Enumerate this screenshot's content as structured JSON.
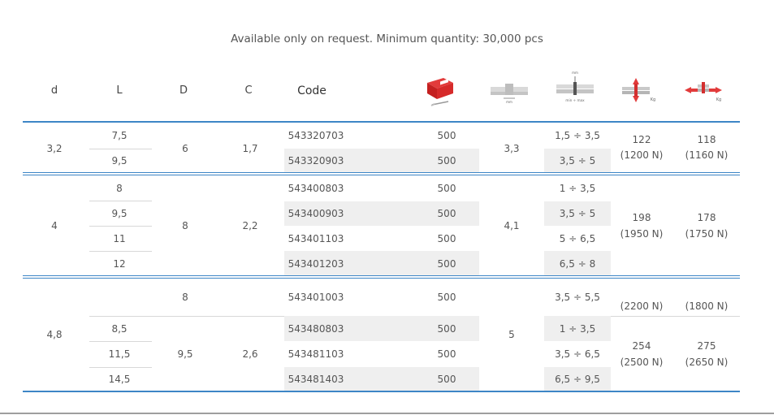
{
  "note": "Available only on request. Minimum quantity: 30,000 pcs",
  "headers": {
    "d": "d",
    "L": "L",
    "D": "D",
    "C": "C",
    "code": "Code"
  },
  "icons": {
    "box": "package-box-icon",
    "diameter": "rivet-diameter-icon",
    "grip": "grip-range-min-max-icon",
    "shear": "shear-force-kg-icon",
    "tensile": "tensile-force-kg-icon",
    "grip_min_max_label": "min ÷ max",
    "grip_unit": "mm",
    "kg": "Kg"
  },
  "groups": [
    {
      "d": "3,2",
      "D": "6",
      "C": "1,7",
      "dia": "3,3",
      "shear": "122",
      "shear_n": "(1200 N)",
      "tensile": "118",
      "tensile_n": "(1160 N)",
      "rows": [
        {
          "L": "7,5",
          "code": "543320703",
          "box": "500",
          "grip": "1,5 ÷ 3,5"
        },
        {
          "L": "9,5",
          "code": "543320903",
          "box": "500",
          "grip": "3,5 ÷ 5"
        }
      ]
    },
    {
      "d": "4",
      "D": "8",
      "C": "2,2",
      "dia": "4,1",
      "shear": "198",
      "shear_n": "(1950 N)",
      "tensile": "178",
      "tensile_n": "(1750 N)",
      "rows": [
        {
          "L": "8",
          "code": "543400803",
          "box": "500",
          "grip": "1 ÷ 3,5"
        },
        {
          "L": "9,5",
          "code": "543400903",
          "box": "500",
          "grip": "3,5 ÷ 5"
        },
        {
          "L": "11",
          "code": "543401103",
          "box": "500",
          "grip": "5 ÷ 6,5"
        },
        {
          "L": "12",
          "code": "543401203",
          "box": "500",
          "grip": "6,5 ÷ 8"
        }
      ]
    },
    {
      "d": "4,8",
      "D_top": "8",
      "D": "9,5",
      "C": "2,6",
      "dia": "5",
      "shear_top_n": "(2200 N)",
      "tensile_top_n": "(1800 N)",
      "shear": "254",
      "shear_n": "(2500 N)",
      "tensile": "275",
      "tensile_n": "(2650 N)",
      "rows": [
        {
          "L": "",
          "code": "543401003",
          "box": "500",
          "grip": "3,5 ÷ 5,5"
        },
        {
          "L": "8,5",
          "code": "543480803",
          "box": "500",
          "grip": "1 ÷ 3,5"
        },
        {
          "L": "11,5",
          "code": "543481103",
          "box": "500",
          "grip": "3,5 ÷ 6,5"
        },
        {
          "L": "14,5",
          "code": "543481403",
          "box": "500",
          "grip": "6,5 ÷ 9,5"
        }
      ]
    }
  ]
}
